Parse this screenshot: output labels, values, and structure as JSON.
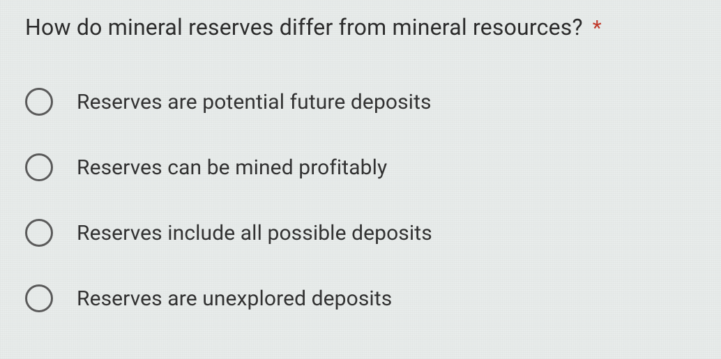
{
  "question": {
    "text": "How do mineral reserves differ from mineral resources?",
    "required_marker": "*"
  },
  "options": [
    {
      "label": "Reserves are potential future deposits"
    },
    {
      "label": "Reserves can be mined profitably"
    },
    {
      "label": "Reserves include all possible deposits"
    },
    {
      "label": "Reserves are unexplored deposits"
    }
  ],
  "colors": {
    "background": "#e8eceb",
    "text": "#2c2c2c",
    "required": "#c0392b",
    "radio_border": "#5a5a5a"
  }
}
